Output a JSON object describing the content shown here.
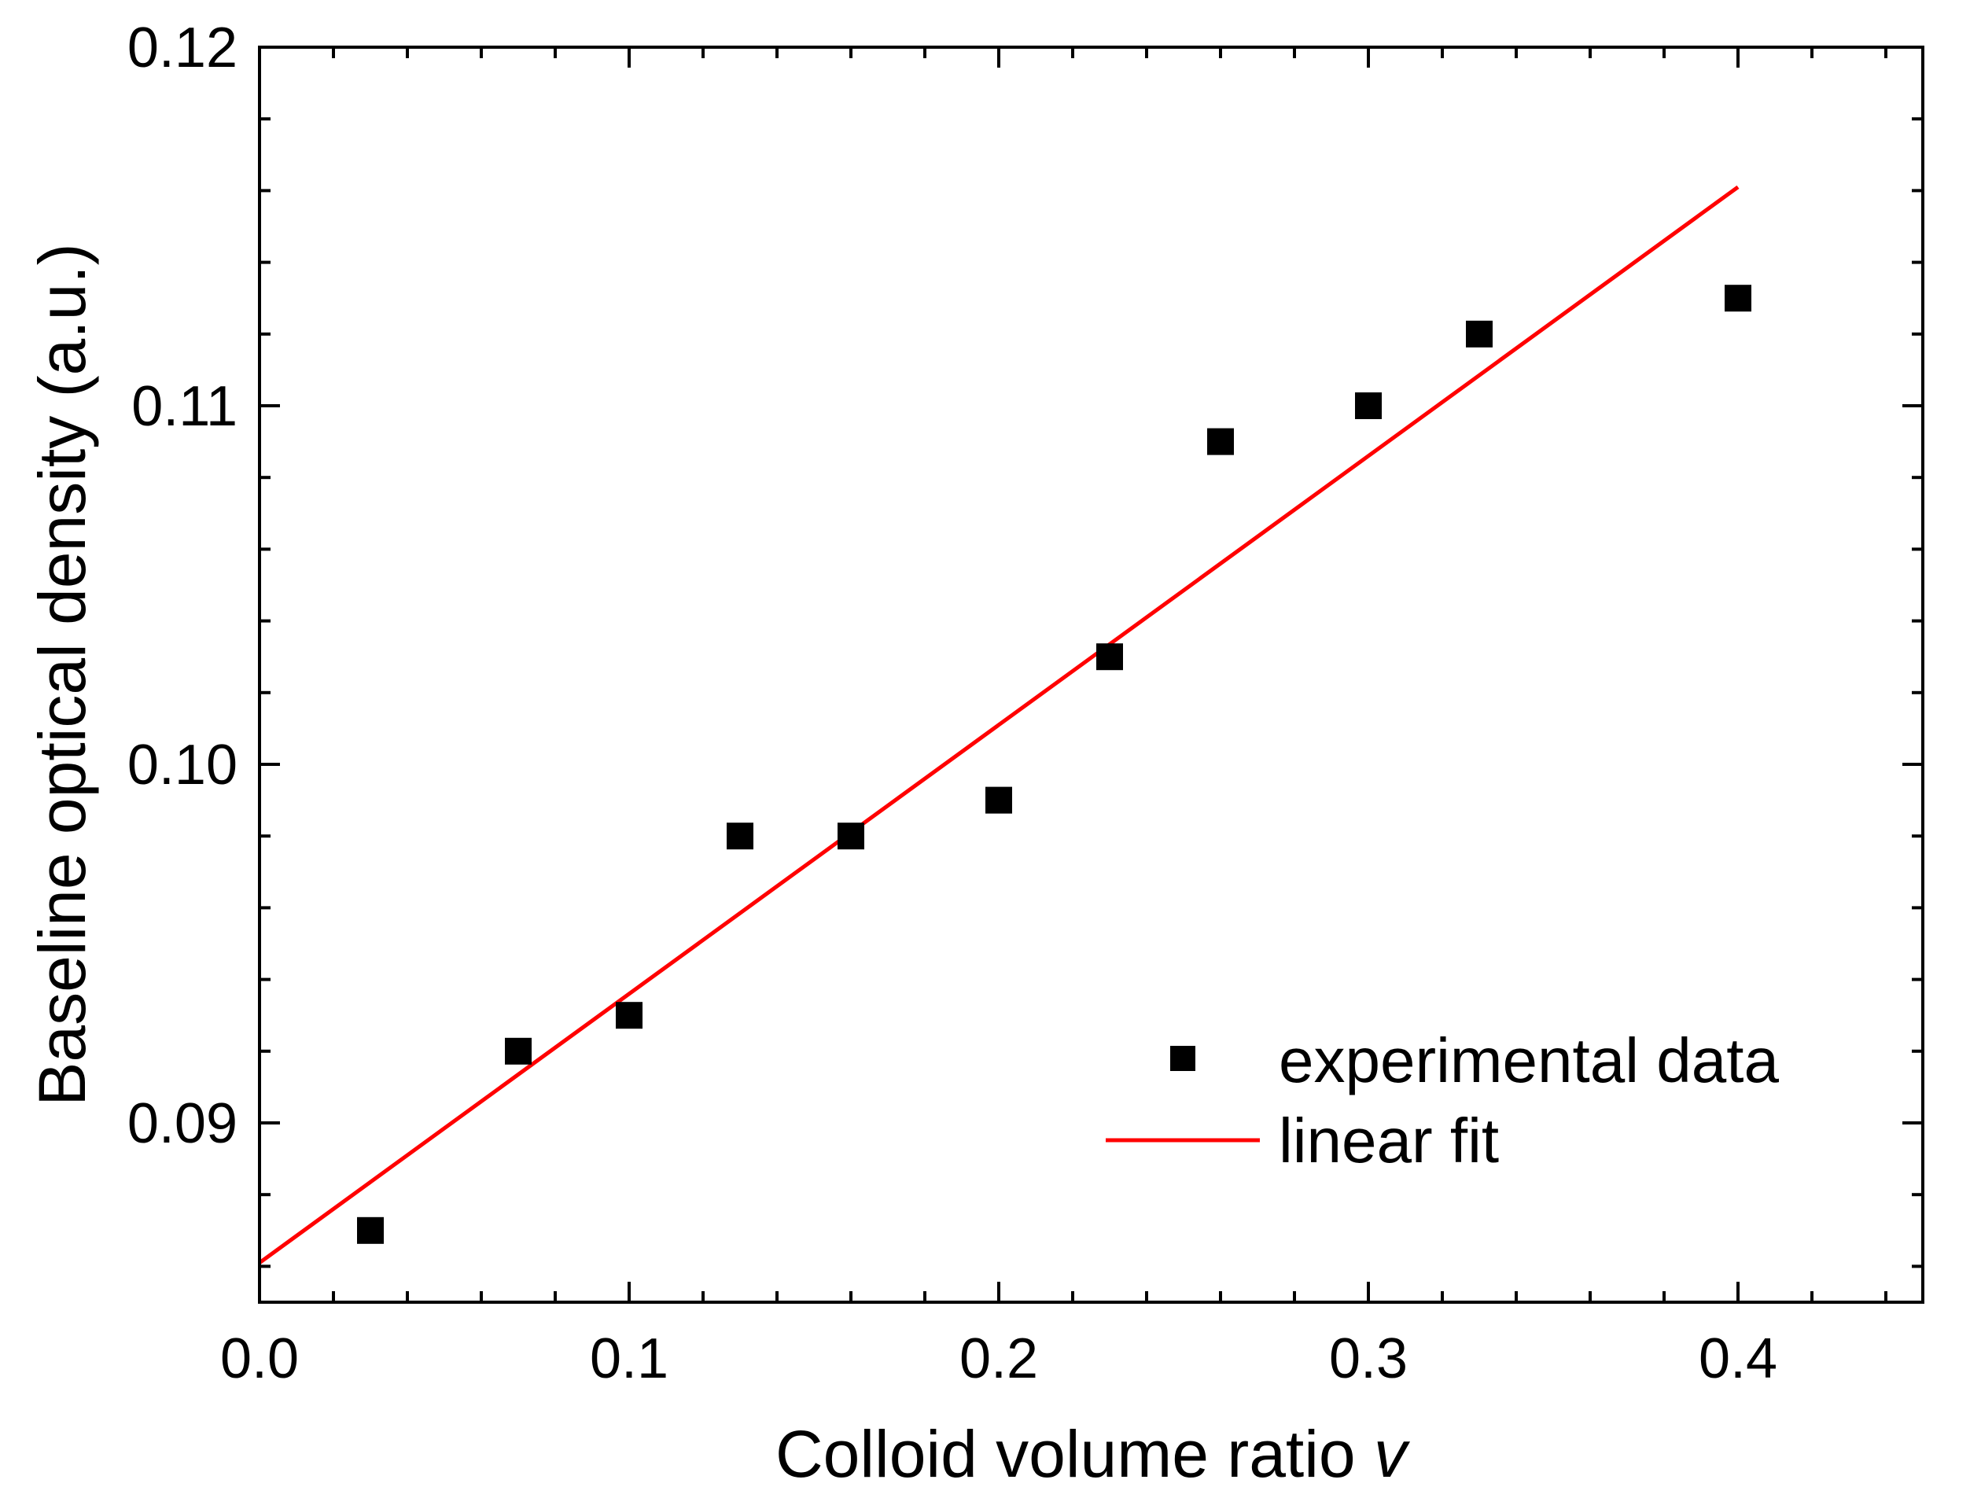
{
  "chart_data": {
    "type": "scatter",
    "title": "",
    "xlabel": "Colloid volume ratio",
    "xlabel_var": "v",
    "ylabel": "Baseline optical density (a.u.)",
    "xlim": [
      0.0,
      0.45
    ],
    "ylim": [
      0.085,
      0.12
    ],
    "x_ticks": [
      {
        "value": 0.0,
        "label": "0.0"
      },
      {
        "value": 0.1,
        "label": "0.1"
      },
      {
        "value": 0.2,
        "label": "0.2"
      },
      {
        "value": 0.3,
        "label": "0.3"
      },
      {
        "value": 0.4,
        "label": "0.4"
      }
    ],
    "y_ticks": [
      {
        "value": 0.09,
        "label": "0.09"
      },
      {
        "value": 0.1,
        "label": "0.10"
      },
      {
        "value": 0.11,
        "label": "0.11"
      },
      {
        "value": 0.12,
        "label": "0.12"
      }
    ],
    "x_minor_step": 0.02,
    "y_minor_step": 0.002,
    "grid": false,
    "legend_position": "bottom-right",
    "series": [
      {
        "name": "experimental data",
        "kind": "scatter",
        "marker": "square",
        "color": "#000000",
        "x": [
          0.03,
          0.07,
          0.1,
          0.13,
          0.16,
          0.2,
          0.23,
          0.26,
          0.3,
          0.33,
          0.4
        ],
        "y": [
          0.087,
          0.092,
          0.093,
          0.098,
          0.098,
          0.099,
          0.103,
          0.109,
          0.11,
          0.112,
          0.113
        ]
      },
      {
        "name": "linear fit",
        "kind": "line",
        "color": "#ff0000",
        "x": [
          0.0,
          0.4
        ],
        "y": [
          0.0861,
          0.1161
        ]
      }
    ]
  }
}
